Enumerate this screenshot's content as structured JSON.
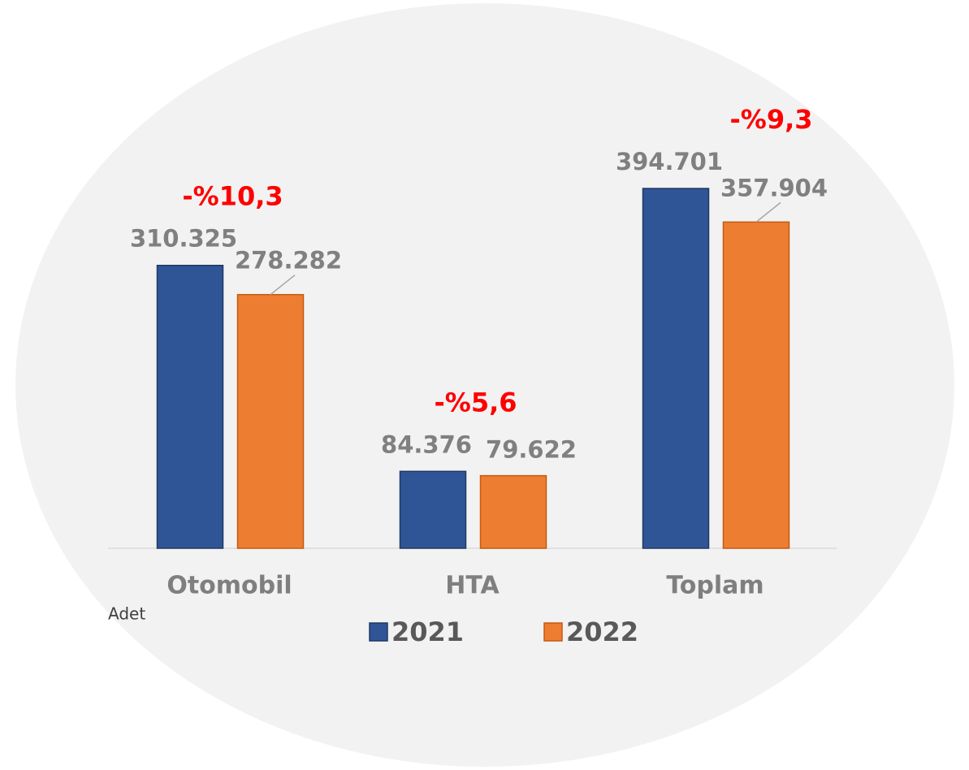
{
  "chart_data": {
    "type": "bar",
    "categories": [
      "Otomobil",
      "HTA",
      "Toplam"
    ],
    "series": [
      {
        "name": "2021",
        "color": "#2f5597",
        "values": [
          310325,
          84376,
          394701
        ],
        "value_labels": [
          "310.325",
          "84.376",
          "394.701"
        ]
      },
      {
        "name": "2022",
        "color": "#ed7d31",
        "values": [
          278282,
          79622,
          357904
        ],
        "value_labels": [
          "278.282",
          "79.622",
          "357.904"
        ]
      }
    ],
    "annotations": [
      "-%10,3",
      "-%5,6",
      "-%9,3"
    ],
    "unit_label": "Adet",
    "ylim": [
      0,
      450000
    ],
    "legend": "bottom"
  }
}
